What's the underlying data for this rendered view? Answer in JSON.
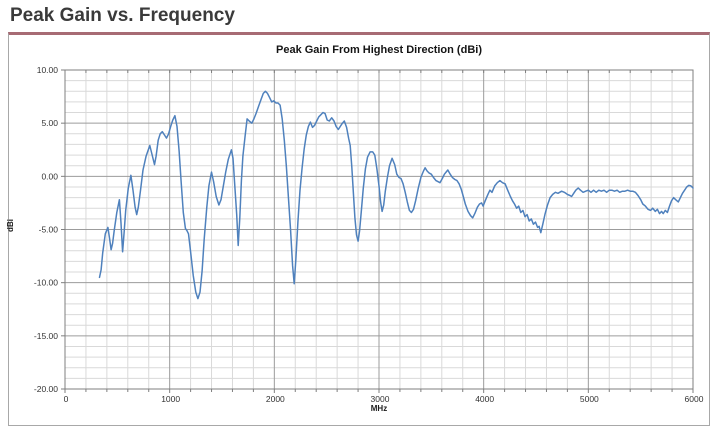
{
  "page": {
    "heading": "Peak Gain vs. Frequency"
  },
  "colors": {
    "accent_bar": "#a76b74",
    "frame_border": "#a8a8a8",
    "line": "#4f81bd",
    "grid_minor": "#d9d9d9",
    "grid_major": "#9c9c9c",
    "axis": "#7f7f7f",
    "tick_text": "#333333"
  },
  "chart_data": {
    "type": "line",
    "title": "Peak Gain From Highest Direction (dBi)",
    "xlabel": "MHz",
    "ylabel": "dBi",
    "xlim": [
      0,
      6000
    ],
    "ylim": [
      -20,
      10
    ],
    "x_major_ticks": [
      0,
      1000,
      2000,
      3000,
      4000,
      5000,
      6000
    ],
    "x_major_labels": [
      "0",
      "1000",
      "2000",
      "3000",
      "4000",
      "5000",
      "6000"
    ],
    "x_minor_step": 200,
    "y_major_ticks": [
      10,
      5,
      0,
      -5,
      -10,
      -15,
      -20
    ],
    "y_major_labels": [
      "10.00",
      "5.00",
      "0.00",
      "-5.00",
      "-10.00",
      "-15.00",
      "-20.00"
    ],
    "y_minor_step": 1,
    "grid": true,
    "legend": "none",
    "series": [
      {
        "name": "Peak Gain",
        "points": [
          [
            330,
            -9.5
          ],
          [
            345,
            -8.8
          ],
          [
            360,
            -7.2
          ],
          [
            385,
            -5.4
          ],
          [
            410,
            -4.8
          ],
          [
            425,
            -5.8
          ],
          [
            440,
            -6.9
          ],
          [
            455,
            -6.3
          ],
          [
            470,
            -5.1
          ],
          [
            495,
            -3.4
          ],
          [
            520,
            -2.2
          ],
          [
            535,
            -4.4
          ],
          [
            550,
            -7.1
          ],
          [
            565,
            -5.3
          ],
          [
            580,
            -3.2
          ],
          [
            605,
            -1.1
          ],
          [
            630,
            0.1
          ],
          [
            650,
            -1.3
          ],
          [
            670,
            -2.9
          ],
          [
            685,
            -3.6
          ],
          [
            700,
            -2.9
          ],
          [
            720,
            -1.4
          ],
          [
            745,
            0.6
          ],
          [
            775,
            1.9
          ],
          [
            810,
            2.9
          ],
          [
            830,
            2.1
          ],
          [
            855,
            1.1
          ],
          [
            870,
            1.9
          ],
          [
            890,
            3.4
          ],
          [
            910,
            4.0
          ],
          [
            930,
            4.2
          ],
          [
            950,
            3.9
          ],
          [
            970,
            3.6
          ],
          [
            990,
            4.0
          ],
          [
            1010,
            4.7
          ],
          [
            1030,
            5.3
          ],
          [
            1050,
            5.7
          ],
          [
            1070,
            4.7
          ],
          [
            1090,
            2.4
          ],
          [
            1110,
            -0.6
          ],
          [
            1130,
            -3.4
          ],
          [
            1150,
            -4.9
          ],
          [
            1165,
            -5.1
          ],
          [
            1180,
            -5.4
          ],
          [
            1200,
            -7.1
          ],
          [
            1225,
            -9.3
          ],
          [
            1250,
            -10.9
          ],
          [
            1270,
            -11.5
          ],
          [
            1290,
            -10.9
          ],
          [
            1310,
            -8.9
          ],
          [
            1330,
            -5.9
          ],
          [
            1355,
            -2.9
          ],
          [
            1375,
            -0.9
          ],
          [
            1400,
            0.4
          ],
          [
            1420,
            -0.5
          ],
          [
            1445,
            -1.9
          ],
          [
            1470,
            -2.7
          ],
          [
            1490,
            -2.2
          ],
          [
            1510,
            -1.1
          ],
          [
            1535,
            0.4
          ],
          [
            1560,
            1.6
          ],
          [
            1590,
            2.5
          ],
          [
            1605,
            1.7
          ],
          [
            1620,
            -0.6
          ],
          [
            1640,
            -3.6
          ],
          [
            1655,
            -6.5
          ],
          [
            1670,
            -3.9
          ],
          [
            1685,
            -0.4
          ],
          [
            1700,
            1.9
          ],
          [
            1720,
            3.7
          ],
          [
            1740,
            5.4
          ],
          [
            1760,
            5.2
          ],
          [
            1785,
            5.0
          ],
          [
            1805,
            5.4
          ],
          [
            1825,
            5.9
          ],
          [
            1850,
            6.6
          ],
          [
            1875,
            7.3
          ],
          [
            1895,
            7.8
          ],
          [
            1915,
            8.0
          ],
          [
            1935,
            7.8
          ],
          [
            1955,
            7.4
          ],
          [
            1975,
            7.0
          ],
          [
            1995,
            7.1
          ],
          [
            2015,
            6.9
          ],
          [
            2035,
            6.9
          ],
          [
            2055,
            6.7
          ],
          [
            2075,
            5.4
          ],
          [
            2095,
            3.4
          ],
          [
            2115,
            0.9
          ],
          [
            2135,
            -2.1
          ],
          [
            2155,
            -5.1
          ],
          [
            2175,
            -8.4
          ],
          [
            2190,
            -10.1
          ],
          [
            2205,
            -7.9
          ],
          [
            2225,
            -4.3
          ],
          [
            2245,
            -1.3
          ],
          [
            2265,
            0.8
          ],
          [
            2285,
            2.6
          ],
          [
            2305,
            3.9
          ],
          [
            2325,
            4.7
          ],
          [
            2345,
            5.1
          ],
          [
            2365,
            4.6
          ],
          [
            2385,
            4.8
          ],
          [
            2405,
            5.2
          ],
          [
            2425,
            5.6
          ],
          [
            2445,
            5.8
          ],
          [
            2465,
            6.0
          ],
          [
            2485,
            5.9
          ],
          [
            2505,
            5.3
          ],
          [
            2525,
            5.2
          ],
          [
            2548,
            5.5
          ],
          [
            2570,
            5.2
          ],
          [
            2590,
            4.7
          ],
          [
            2611,
            4.4
          ],
          [
            2630,
            4.7
          ],
          [
            2650,
            5.0
          ],
          [
            2668,
            5.2
          ],
          [
            2690,
            4.6
          ],
          [
            2710,
            3.6
          ],
          [
            2725,
            2.9
          ],
          [
            2740,
            0.9
          ],
          [
            2755,
            -1.6
          ],
          [
            2770,
            -3.9
          ],
          [
            2785,
            -5.5
          ],
          [
            2800,
            -6.1
          ],
          [
            2815,
            -5.1
          ],
          [
            2830,
            -3.4
          ],
          [
            2850,
            -1.1
          ],
          [
            2870,
            0.7
          ],
          [
            2890,
            1.8
          ],
          [
            2915,
            2.3
          ],
          [
            2940,
            2.3
          ],
          [
            2960,
            2.0
          ],
          [
            2980,
            0.7
          ],
          [
            3000,
            -0.9
          ],
          [
            3015,
            -2.4
          ],
          [
            3030,
            -3.3
          ],
          [
            3045,
            -2.7
          ],
          [
            3060,
            -1.4
          ],
          [
            3080,
            -0.1
          ],
          [
            3100,
            1.0
          ],
          [
            3125,
            1.7
          ],
          [
            3150,
            1.1
          ],
          [
            3170,
            0.2
          ],
          [
            3190,
            -0.1
          ],
          [
            3210,
            -0.2
          ],
          [
            3230,
            -0.7
          ],
          [
            3250,
            -1.5
          ],
          [
            3270,
            -2.4
          ],
          [
            3290,
            -3.2
          ],
          [
            3310,
            -3.4
          ],
          [
            3330,
            -3.1
          ],
          [
            3350,
            -2.3
          ],
          [
            3375,
            -1.1
          ],
          [
            3400,
            -0.1
          ],
          [
            3425,
            0.5
          ],
          [
            3440,
            0.8
          ],
          [
            3460,
            0.5
          ],
          [
            3480,
            0.3
          ],
          [
            3500,
            0.2
          ],
          [
            3520,
            -0.1
          ],
          [
            3545,
            -0.4
          ],
          [
            3583,
            -0.6
          ],
          [
            3605,
            -0.2
          ],
          [
            3625,
            0.2
          ],
          [
            3657,
            0.6
          ],
          [
            3680,
            0.2
          ],
          [
            3700,
            -0.1
          ],
          [
            3725,
            -0.3
          ],
          [
            3745,
            -0.4
          ],
          [
            3765,
            -0.7
          ],
          [
            3785,
            -1.2
          ],
          [
            3805,
            -1.9
          ],
          [
            3825,
            -2.6
          ],
          [
            3850,
            -3.3
          ],
          [
            3875,
            -3.7
          ],
          [
            3895,
            -3.9
          ],
          [
            3915,
            -3.5
          ],
          [
            3940,
            -2.9
          ],
          [
            3960,
            -2.6
          ],
          [
            3980,
            -2.5
          ],
          [
            3995,
            -2.8
          ],
          [
            4015,
            -2.3
          ],
          [
            4040,
            -1.7
          ],
          [
            4060,
            -1.3
          ],
          [
            4080,
            -1.5
          ],
          [
            4105,
            -0.9
          ],
          [
            4130,
            -0.6
          ],
          [
            4155,
            -0.4
          ],
          [
            4180,
            -0.6
          ],
          [
            4205,
            -0.7
          ],
          [
            4230,
            -1.3
          ],
          [
            4255,
            -1.9
          ],
          [
            4275,
            -2.3
          ],
          [
            4295,
            -2.6
          ],
          [
            4315,
            -3.0
          ],
          [
            4335,
            -2.8
          ],
          [
            4355,
            -3.4
          ],
          [
            4375,
            -3.2
          ],
          [
            4395,
            -3.8
          ],
          [
            4415,
            -3.6
          ],
          [
            4435,
            -4.2
          ],
          [
            4455,
            -4.0
          ],
          [
            4475,
            -4.5
          ],
          [
            4495,
            -4.3
          ],
          [
            4515,
            -4.8
          ],
          [
            4530,
            -4.7
          ],
          [
            4546,
            -5.3
          ],
          [
            4565,
            -4.5
          ],
          [
            4585,
            -3.6
          ],
          [
            4610,
            -2.7
          ],
          [
            4635,
            -2.0
          ],
          [
            4660,
            -1.7
          ],
          [
            4685,
            -1.5
          ],
          [
            4710,
            -1.6
          ],
          [
            4745,
            -1.4
          ],
          [
            4770,
            -1.5
          ],
          [
            4800,
            -1.7
          ],
          [
            4825,
            -1.8
          ],
          [
            4840,
            -1.9
          ],
          [
            4860,
            -1.6
          ],
          [
            4880,
            -1.3
          ],
          [
            4903,
            -1.1
          ],
          [
            4925,
            -1.3
          ],
          [
            4950,
            -1.5
          ],
          [
            4975,
            -1.4
          ],
          [
            5000,
            -1.3
          ],
          [
            5025,
            -1.5
          ],
          [
            5050,
            -1.3
          ],
          [
            5075,
            -1.5
          ],
          [
            5100,
            -1.3
          ],
          [
            5125,
            -1.4
          ],
          [
            5150,
            -1.3
          ],
          [
            5175,
            -1.5
          ],
          [
            5200,
            -1.3
          ],
          [
            5225,
            -1.3
          ],
          [
            5250,
            -1.4
          ],
          [
            5275,
            -1.3
          ],
          [
            5300,
            -1.5
          ],
          [
            5325,
            -1.4
          ],
          [
            5350,
            -1.4
          ],
          [
            5375,
            -1.3
          ],
          [
            5400,
            -1.4
          ],
          [
            5425,
            -1.4
          ],
          [
            5450,
            -1.5
          ],
          [
            5475,
            -1.8
          ],
          [
            5500,
            -2.2
          ],
          [
            5520,
            -2.6
          ],
          [
            5545,
            -2.8
          ],
          [
            5570,
            -3.1
          ],
          [
            5595,
            -3.2
          ],
          [
            5615,
            -3.0
          ],
          [
            5640,
            -3.3
          ],
          [
            5660,
            -3.1
          ],
          [
            5680,
            -3.5
          ],
          [
            5700,
            -3.3
          ],
          [
            5715,
            -3.5
          ],
          [
            5735,
            -3.2
          ],
          [
            5755,
            -3.4
          ],
          [
            5775,
            -2.8
          ],
          [
            5795,
            -2.3
          ],
          [
            5815,
            -2.0
          ],
          [
            5835,
            -2.2
          ],
          [
            5860,
            -2.4
          ],
          [
            5880,
            -2.0
          ],
          [
            5900,
            -1.6
          ],
          [
            5920,
            -1.3
          ],
          [
            5940,
            -1.0
          ],
          [
            5960,
            -0.85
          ],
          [
            5980,
            -0.9
          ],
          [
            6000,
            -1.1
          ]
        ]
      }
    ]
  }
}
